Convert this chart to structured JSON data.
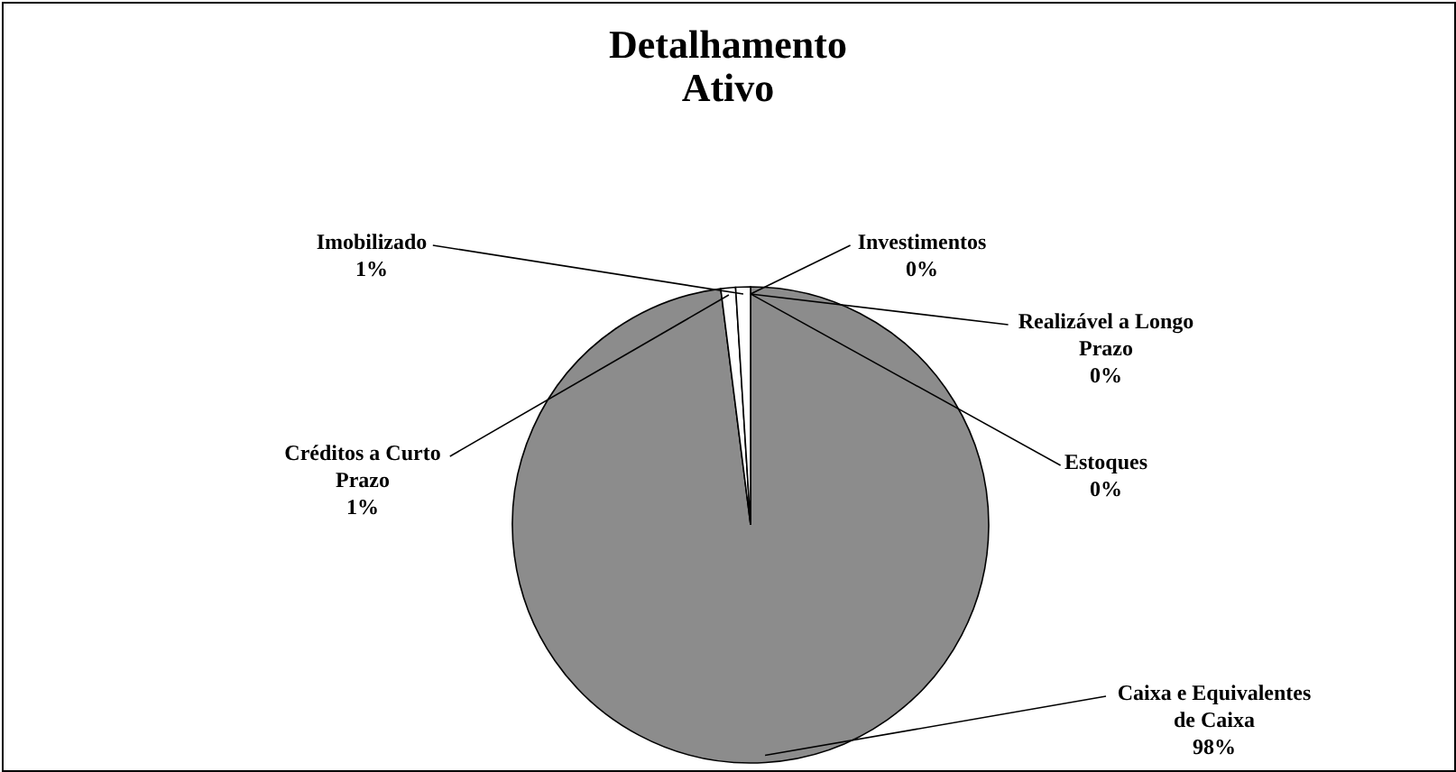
{
  "chart_data": {
    "type": "pie",
    "title": "Detalhamento Ativo",
    "categories": [
      "Investimentos",
      "Realizável a Longo Prazo",
      "Estoques",
      "Caixa e Equivalentes de Caixa",
      "Créditos a Curto Prazo",
      "Imobilizado"
    ],
    "values": [
      0,
      0,
      0,
      98,
      1,
      1
    ],
    "value_labels": [
      "0%",
      "0%",
      "0%",
      "98%",
      "1%",
      "1%"
    ],
    "colors": [
      "#ffffff",
      "#ffffff",
      "#ffffff",
      "#8c8c8c",
      "#ffffff",
      "#ffffff"
    ]
  }
}
